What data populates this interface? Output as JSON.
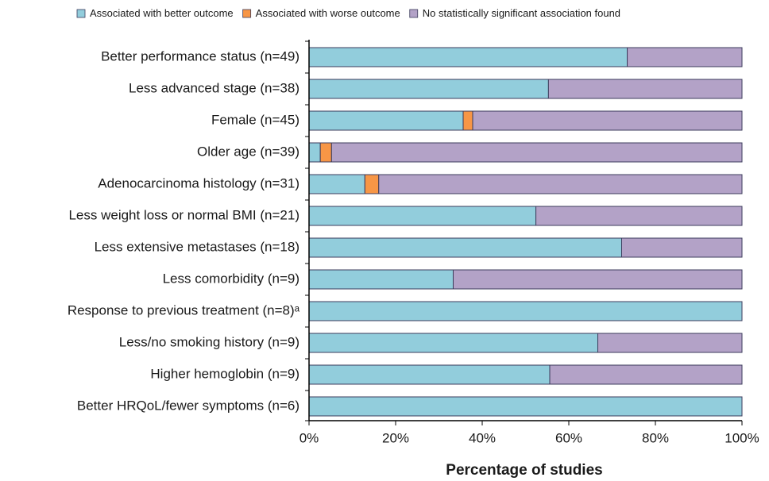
{
  "chart_data": {
    "type": "stacked-barh",
    "x_label": "Percentage of studies",
    "categories": [
      "Better performance status (n=49)",
      "Less advanced stage (n=38)",
      "Female (n=45)",
      "Older age (n=39)",
      "Adenocarcinoma histology (n=31)",
      "Less weight loss or normal BMI (n=21)",
      "Less extensive metastases (n=18)",
      "Less comorbidity (n=9)",
      "Response to previous treatment (n=8)ᵃ",
      "Less/no smoking history (n=9)",
      "Higher hemoglobin (n=9)",
      "Better HRQoL/fewer symptoms (n=6)"
    ],
    "series": [
      {
        "name": "Associated with better outcome",
        "color": "#92cddc",
        "values": [
          73.5,
          55.3,
          35.6,
          2.6,
          12.9,
          52.4,
          72.2,
          33.3,
          100,
          66.7,
          55.6,
          100
        ]
      },
      {
        "name": "Associated with worse outcome",
        "color": "#f79646",
        "values": [
          0,
          0,
          2.2,
          2.6,
          3.2,
          0,
          0,
          0,
          0,
          0,
          0,
          0
        ]
      },
      {
        "name": "No statistically significant association found",
        "color": "#b3a2c7",
        "values": [
          26.5,
          44.7,
          62.2,
          94.8,
          83.9,
          47.6,
          27.8,
          66.7,
          0,
          33.3,
          44.4,
          0
        ]
      }
    ],
    "xlim": [
      0,
      100
    ],
    "xticks": [
      {
        "value": 0,
        "label": "0%"
      },
      {
        "value": 20,
        "label": "20%"
      },
      {
        "value": 40,
        "label": "40%"
      },
      {
        "value": 60,
        "label": "60%"
      },
      {
        "value": 80,
        "label": "80%"
      },
      {
        "value": 100,
        "label": "100%"
      }
    ],
    "legend": "top"
  }
}
